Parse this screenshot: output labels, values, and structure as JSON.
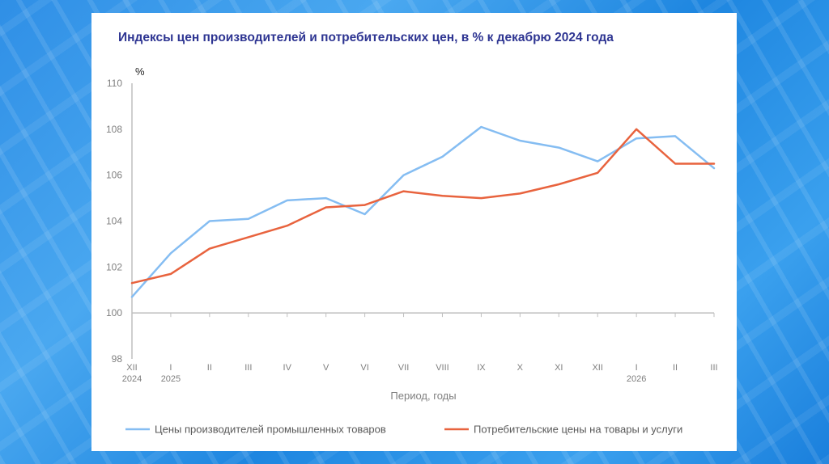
{
  "chart_data": {
    "type": "line",
    "title": "Индексы цен производителей и потребительских цен, в % к декабрю 2024 года",
    "ylabel": "%",
    "xlabel": "Период, годы",
    "ylim": [
      98,
      110
    ],
    "yticks": [
      98,
      100,
      102,
      104,
      106,
      108,
      110
    ],
    "categories": [
      "XII",
      "I",
      "II",
      "III",
      "IV",
      "V",
      "VI",
      "VII",
      "VIII",
      "IX",
      "X",
      "XI",
      "XII",
      "I",
      "II",
      "III"
    ],
    "year_labels": [
      {
        "index": 0,
        "label": "2024"
      },
      {
        "index": 1,
        "label": "2025"
      },
      {
        "index": 13,
        "label": "2026"
      }
    ],
    "grid": false,
    "legend_position": "bottom",
    "series": [
      {
        "name": "Цены производителей промышленных товаров",
        "color": "#85bdf2",
        "values": [
          100.7,
          102.6,
          104.0,
          104.1,
          104.9,
          105.0,
          104.3,
          106.0,
          106.8,
          108.1,
          107.5,
          107.2,
          106.6,
          107.6,
          107.7,
          106.3
        ]
      },
      {
        "name": "Потребительские цены на товары и услуги",
        "color": "#e8633e",
        "values": [
          101.3,
          101.7,
          102.8,
          103.3,
          103.8,
          104.6,
          104.7,
          105.3,
          105.1,
          105.0,
          105.2,
          105.6,
          106.1,
          108.0,
          106.5,
          106.5
        ]
      }
    ]
  }
}
